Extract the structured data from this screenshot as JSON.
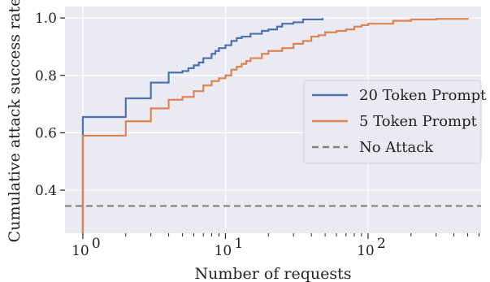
{
  "chart_data": {
    "type": "line",
    "title": "",
    "xlabel": "Number of requests",
    "ylabel": "Cumulative attack success rate",
    "xscale": "log",
    "xlim": [
      0.75,
      620
    ],
    "ylim": [
      0.25,
      1.04
    ],
    "x_ticks": [
      {
        "value": 1,
        "base": "10",
        "exp": "0"
      },
      {
        "value": 10,
        "base": "10",
        "exp": "1"
      },
      {
        "value": 100,
        "base": "10",
        "exp": "2"
      }
    ],
    "y_ticks": [
      0.4,
      0.6,
      0.8,
      1.0
    ],
    "y_tick_labels": [
      "0.4",
      "0.6",
      "0.8",
      "1.0"
    ],
    "grid": true,
    "legend_position": "right",
    "colors": {
      "background": "#eaeaf2",
      "grid": "#ffffff",
      "series_1": "#4c72b0",
      "series_2": "#dd8452",
      "baseline": "#808080"
    },
    "series": [
      {
        "name": "20 Token Prompt",
        "style": "solid",
        "points": [
          [
            1,
            0.25
          ],
          [
            1,
            0.655
          ],
          [
            2,
            0.66
          ],
          [
            2,
            0.72
          ],
          [
            3,
            0.72
          ],
          [
            3,
            0.775
          ],
          [
            4,
            0.775
          ],
          [
            4,
            0.81
          ],
          [
            5,
            0.815
          ],
          [
            5.5,
            0.825
          ],
          [
            6,
            0.835
          ],
          [
            6.5,
            0.845
          ],
          [
            7,
            0.86
          ],
          [
            8,
            0.875
          ],
          [
            8.5,
            0.885
          ],
          [
            9,
            0.895
          ],
          [
            10,
            0.905
          ],
          [
            11,
            0.92
          ],
          [
            12,
            0.93
          ],
          [
            13,
            0.935
          ],
          [
            15,
            0.945
          ],
          [
            18,
            0.955
          ],
          [
            20,
            0.96
          ],
          [
            23,
            0.97
          ],
          [
            25,
            0.98
          ],
          [
            30,
            0.985
          ],
          [
            35,
            0.995
          ],
          [
            48,
            1.0
          ]
        ]
      },
      {
        "name": "5 Token Prompt",
        "style": "solid",
        "points": [
          [
            1,
            0.25
          ],
          [
            1,
            0.59
          ],
          [
            2,
            0.595
          ],
          [
            2,
            0.64
          ],
          [
            3,
            0.645
          ],
          [
            3,
            0.685
          ],
          [
            4,
            0.69
          ],
          [
            4,
            0.715
          ],
          [
            5,
            0.725
          ],
          [
            6,
            0.745
          ],
          [
            7,
            0.765
          ],
          [
            8,
            0.78
          ],
          [
            9,
            0.79
          ],
          [
            10,
            0.8
          ],
          [
            11,
            0.82
          ],
          [
            12,
            0.83
          ],
          [
            13,
            0.84
          ],
          [
            14,
            0.85
          ],
          [
            15,
            0.86
          ],
          [
            18,
            0.875
          ],
          [
            20,
            0.885
          ],
          [
            25,
            0.895
          ],
          [
            30,
            0.91
          ],
          [
            35,
            0.92
          ],
          [
            40,
            0.935
          ],
          [
            45,
            0.94
          ],
          [
            50,
            0.95
          ],
          [
            60,
            0.955
          ],
          [
            70,
            0.96
          ],
          [
            80,
            0.97
          ],
          [
            90,
            0.975
          ],
          [
            100,
            0.98
          ],
          [
            150,
            0.99
          ],
          [
            200,
            0.995
          ],
          [
            300,
            0.997
          ],
          [
            500,
            1.0
          ]
        ]
      },
      {
        "name": "No Attack",
        "style": "dashed",
        "points": [
          [
            0.75,
            0.345
          ],
          [
            620,
            0.345
          ]
        ]
      }
    ]
  }
}
